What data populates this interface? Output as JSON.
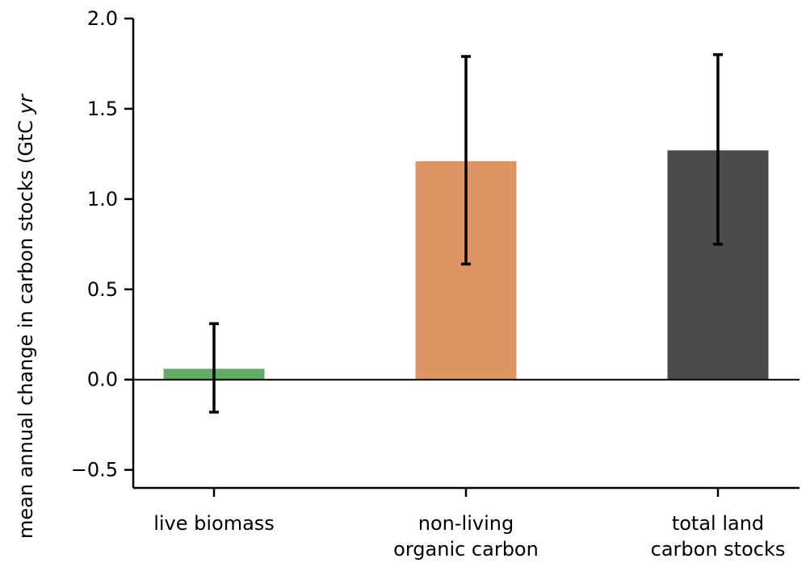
{
  "chart_data": {
    "type": "bar",
    "title": "",
    "xlabel": "",
    "ylabel": "mean annual change in carbon stocks (GtC yr",
    "ylabel_italic_part": "yr",
    "ylim": [
      -0.6,
      2.0
    ],
    "yticks": [
      -0.5,
      0.0,
      0.5,
      1.0,
      1.5,
      2.0
    ],
    "ytick_labels": [
      "−0.5",
      "0.0",
      "0.5",
      "1.0",
      "1.5",
      "2.0"
    ],
    "grid": false,
    "categories": [
      [
        "live biomass"
      ],
      [
        "non-living",
        "organic carbon"
      ],
      [
        "total land",
        "carbon stocks"
      ]
    ],
    "values": [
      0.06,
      1.21,
      1.27
    ],
    "error_low": [
      -0.18,
      0.64,
      0.75
    ],
    "error_high": [
      0.31,
      1.79,
      1.8
    ],
    "colors": [
      "#62ad66",
      "#df9464",
      "#4a4a4a"
    ],
    "zero_line": true
  }
}
